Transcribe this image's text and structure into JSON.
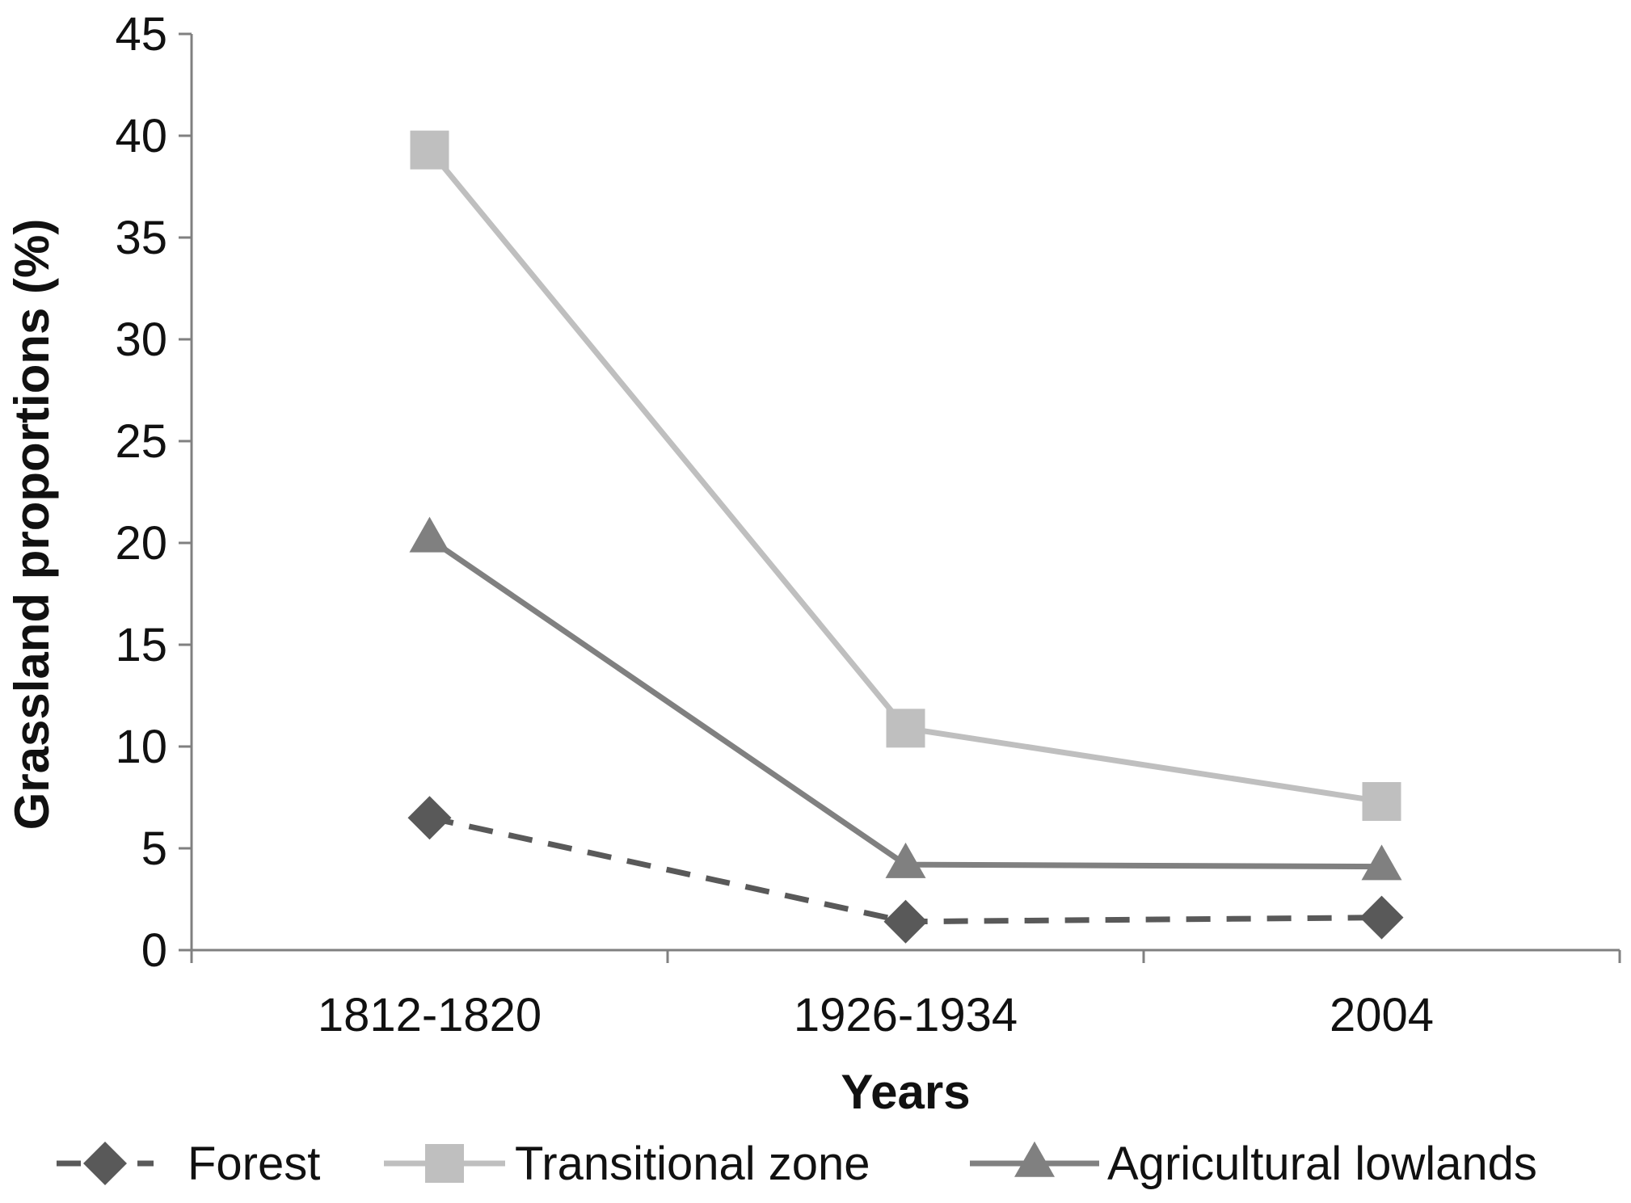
{
  "chart_data": {
    "type": "line",
    "title": "",
    "xlabel": "Years",
    "ylabel": "Grassland proportions (%)",
    "categories": [
      "1812-1820",
      "1926-1934",
      "2004"
    ],
    "ylim": [
      0,
      45
    ],
    "yticks": [
      0,
      5,
      10,
      15,
      20,
      25,
      30,
      35,
      40,
      45
    ],
    "grid": false,
    "legend_position": "bottom",
    "series": [
      {
        "name": "Forest",
        "values": [
          6.5,
          1.4,
          1.6
        ],
        "color": "#595959",
        "dash": "dashed",
        "marker": "diamond"
      },
      {
        "name": "Transitional zone",
        "values": [
          39.3,
          10.9,
          7.3
        ],
        "color": "#bfbfbf",
        "dash": "solid",
        "marker": "square"
      },
      {
        "name": "Agricultural lowlands",
        "values": [
          20.2,
          4.2,
          4.1
        ],
        "color": "#808080",
        "dash": "solid",
        "marker": "triangle"
      }
    ]
  }
}
